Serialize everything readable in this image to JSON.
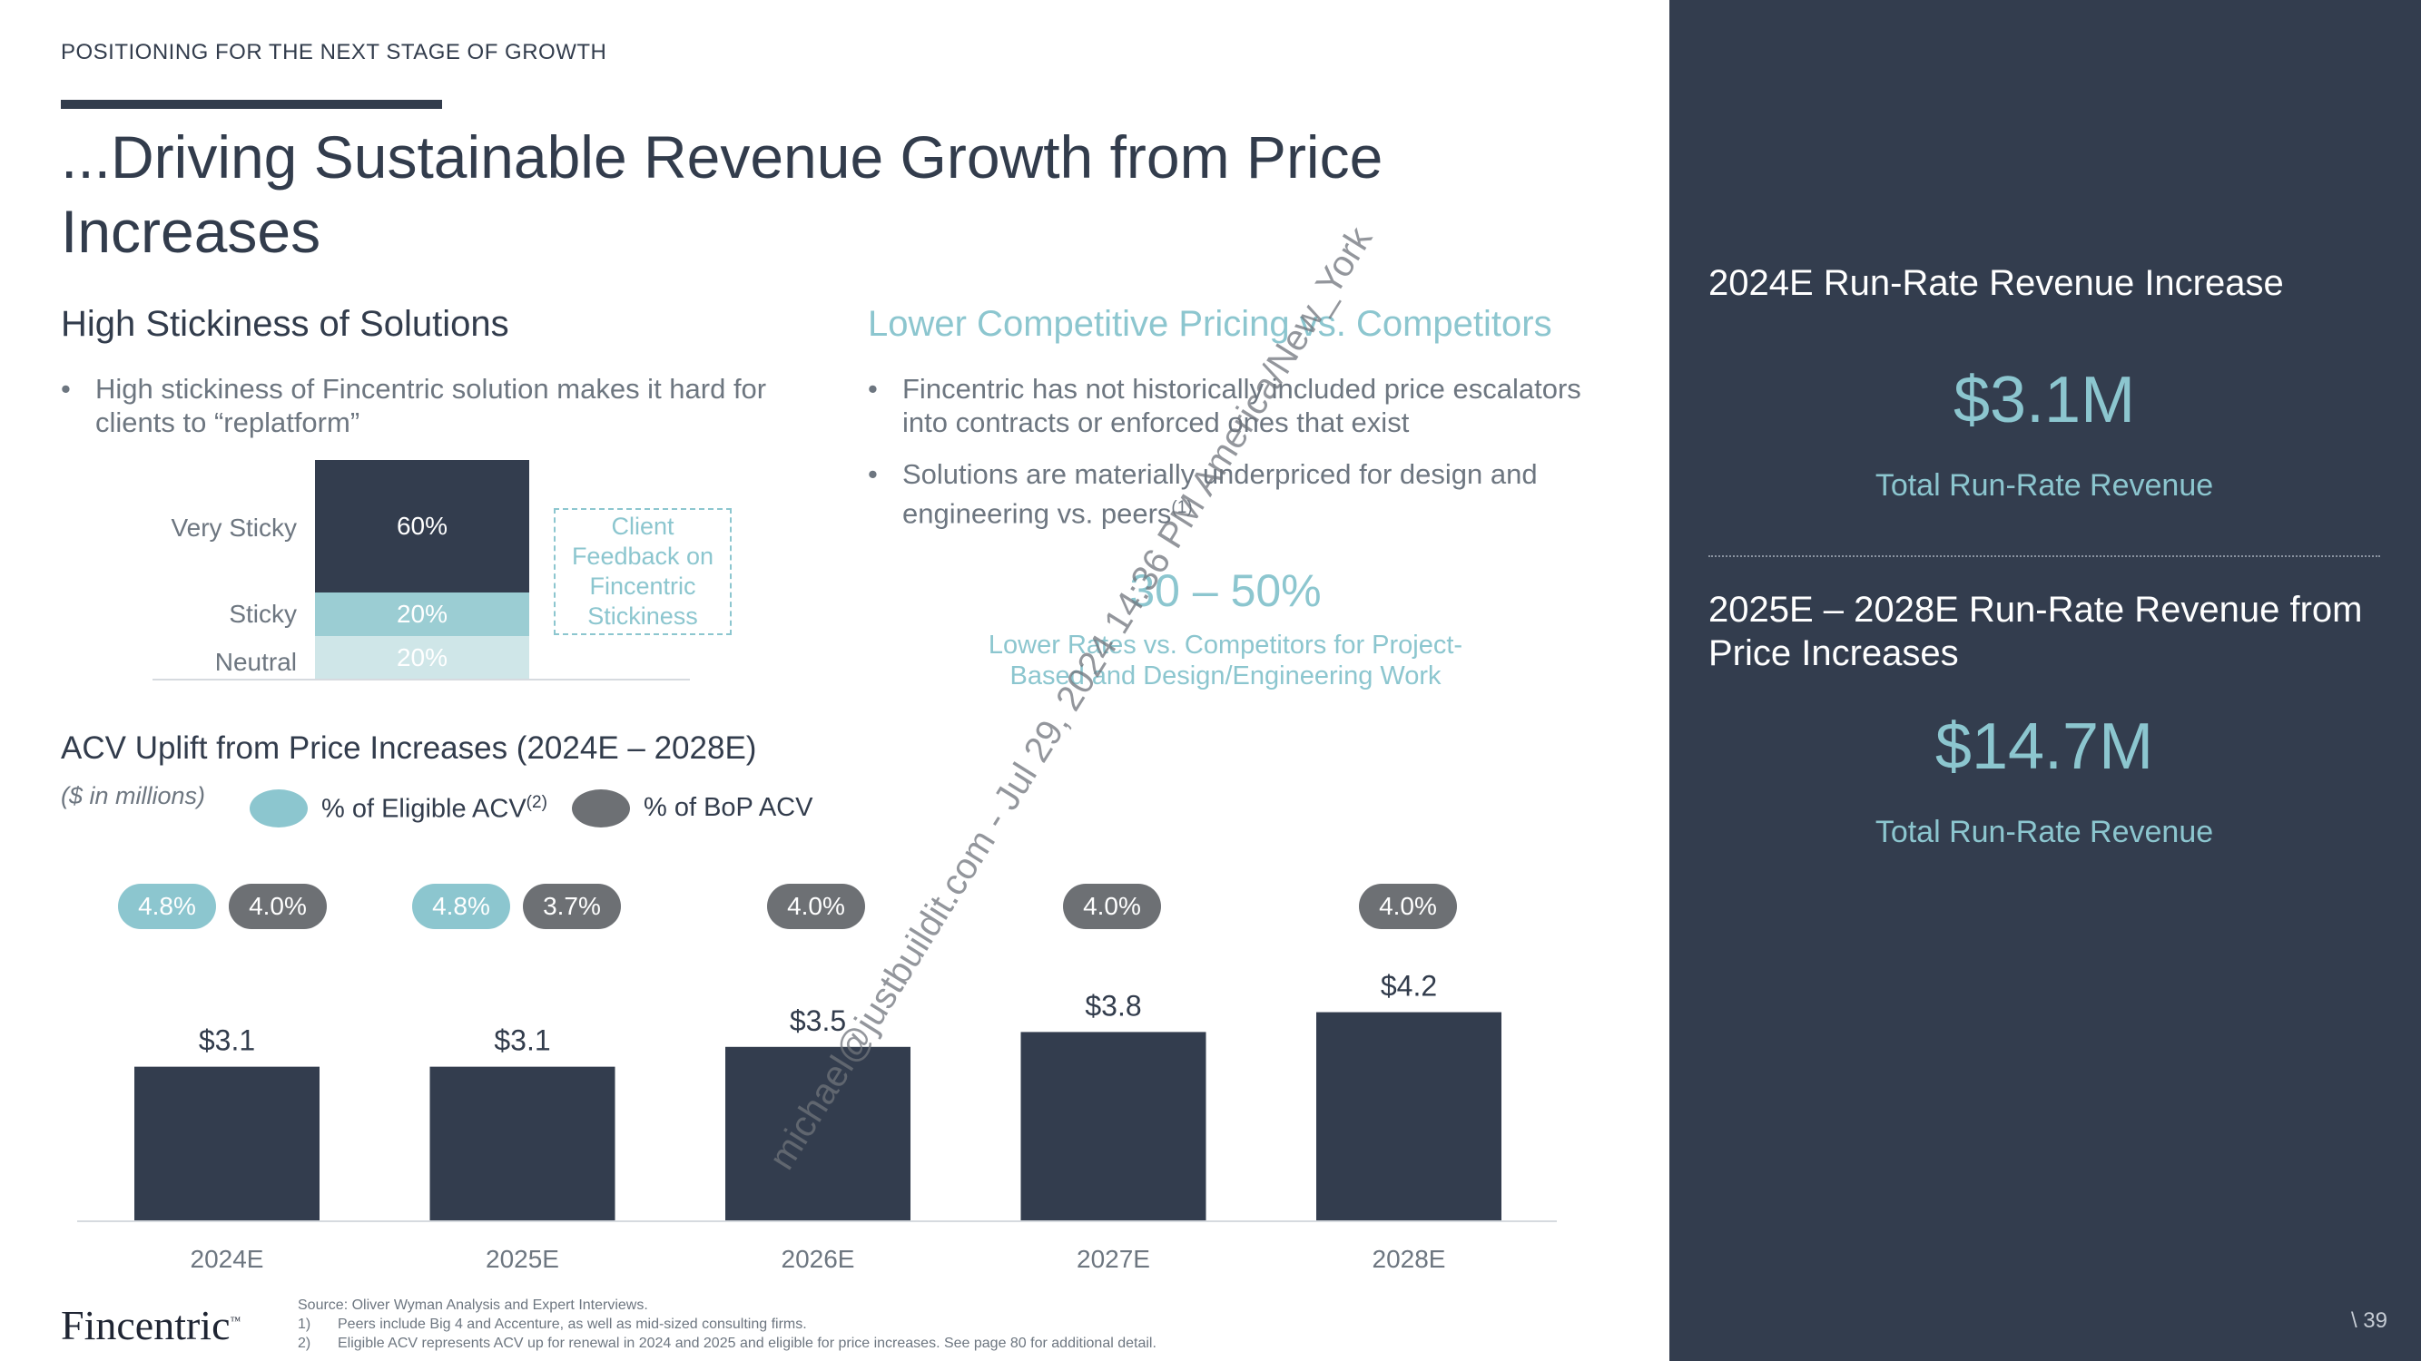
{
  "header": {
    "eyebrow": "POSITIONING FOR THE NEXT STAGE OF GROWTH",
    "title": "...Driving Sustainable Revenue Growth from Price Increases"
  },
  "stickiness": {
    "title": "High Stickiness of Solutions",
    "bullet": "High stickiness of Fincentric solution makes it hard for clients to “replatform”",
    "levels": [
      {
        "label": "Very Sticky",
        "value": "60%"
      },
      {
        "label": "Sticky",
        "value": "20%"
      },
      {
        "label": "Neutral",
        "value": "20%"
      }
    ],
    "callout": "Client Feedback on Fincentric Stickiness",
    "colors": {
      "very_sticky": "#333d4e",
      "sticky": "#9bcdd3",
      "neutral": "#cfe6e8"
    }
  },
  "pricing": {
    "title": "Lower Competitive Pricing vs. Competitors",
    "bullets": [
      {
        "text": "Fincentric has not historically included price escalators into contracts or enforced ones that exist",
        "note": ""
      },
      {
        "text": "Solutions are materially underpriced for design and engineering vs. peers",
        "note": "(1)"
      }
    ],
    "highlight_value": "30 – 50%",
    "highlight_caption": "Lower Rates vs. Competitors for Project-Based and Design/Engineering Work"
  },
  "acv": {
    "title": "ACV Uplift from Price Increases (2024E – 2028E)",
    "subtitle": "($ in millions)",
    "legend": [
      {
        "label": "% of Eligible ACV",
        "note": "(2)",
        "color": "#8cc6cf"
      },
      {
        "label": "% of BoP ACV",
        "note": "",
        "color": "#6d7074"
      }
    ]
  },
  "chart_data": {
    "type": "bar",
    "title": "ACV Uplift from Price Increases (2024E – 2028E)",
    "subtitle": "($ in millions)",
    "categories": [
      "2024E",
      "2025E",
      "2026E",
      "2027E",
      "2028E"
    ],
    "values": [
      3.1,
      3.1,
      3.5,
      3.8,
      4.2
    ],
    "value_labels": [
      "$3.1",
      "$3.1",
      "$3.5",
      "$3.8",
      "$4.2"
    ],
    "pct_eligible_acv": [
      "4.8%",
      "4.8%",
      "",
      "",
      ""
    ],
    "pct_bop_acv": [
      "4.0%",
      "3.7%",
      "4.0%",
      "4.0%",
      "4.0%"
    ],
    "ylim": [
      0,
      5.4
    ],
    "bar_color": "#333d4e",
    "grid": false
  },
  "sidebar": {
    "heading_1": "2024E Run-Rate Revenue Increase",
    "value_1": "$3.1M",
    "caption_1": "Total Run-Rate Revenue",
    "heading_2": "2025E – 2028E Run-Rate Revenue from Price Increases",
    "value_2": "$14.7M",
    "caption_2": "Total Run-Rate Revenue"
  },
  "footer": {
    "logo": "Fincentric",
    "source": "Source: Oliver Wyman Analysis and Expert Interviews.",
    "notes": [
      {
        "num": "1)",
        "text": "Peers include Big 4 and Accenture, as well as mid-sized consulting firms."
      },
      {
        "num": "2)",
        "text": "Eligible ACV represents ACV up for renewal in 2024 and 2025 and eligible for price increases. See page 80 for additional detail."
      }
    ],
    "page": "\\ 39"
  },
  "watermark": "michael@justbuildit.com - Jul 29, 2024 14:36 PM America/New_York"
}
